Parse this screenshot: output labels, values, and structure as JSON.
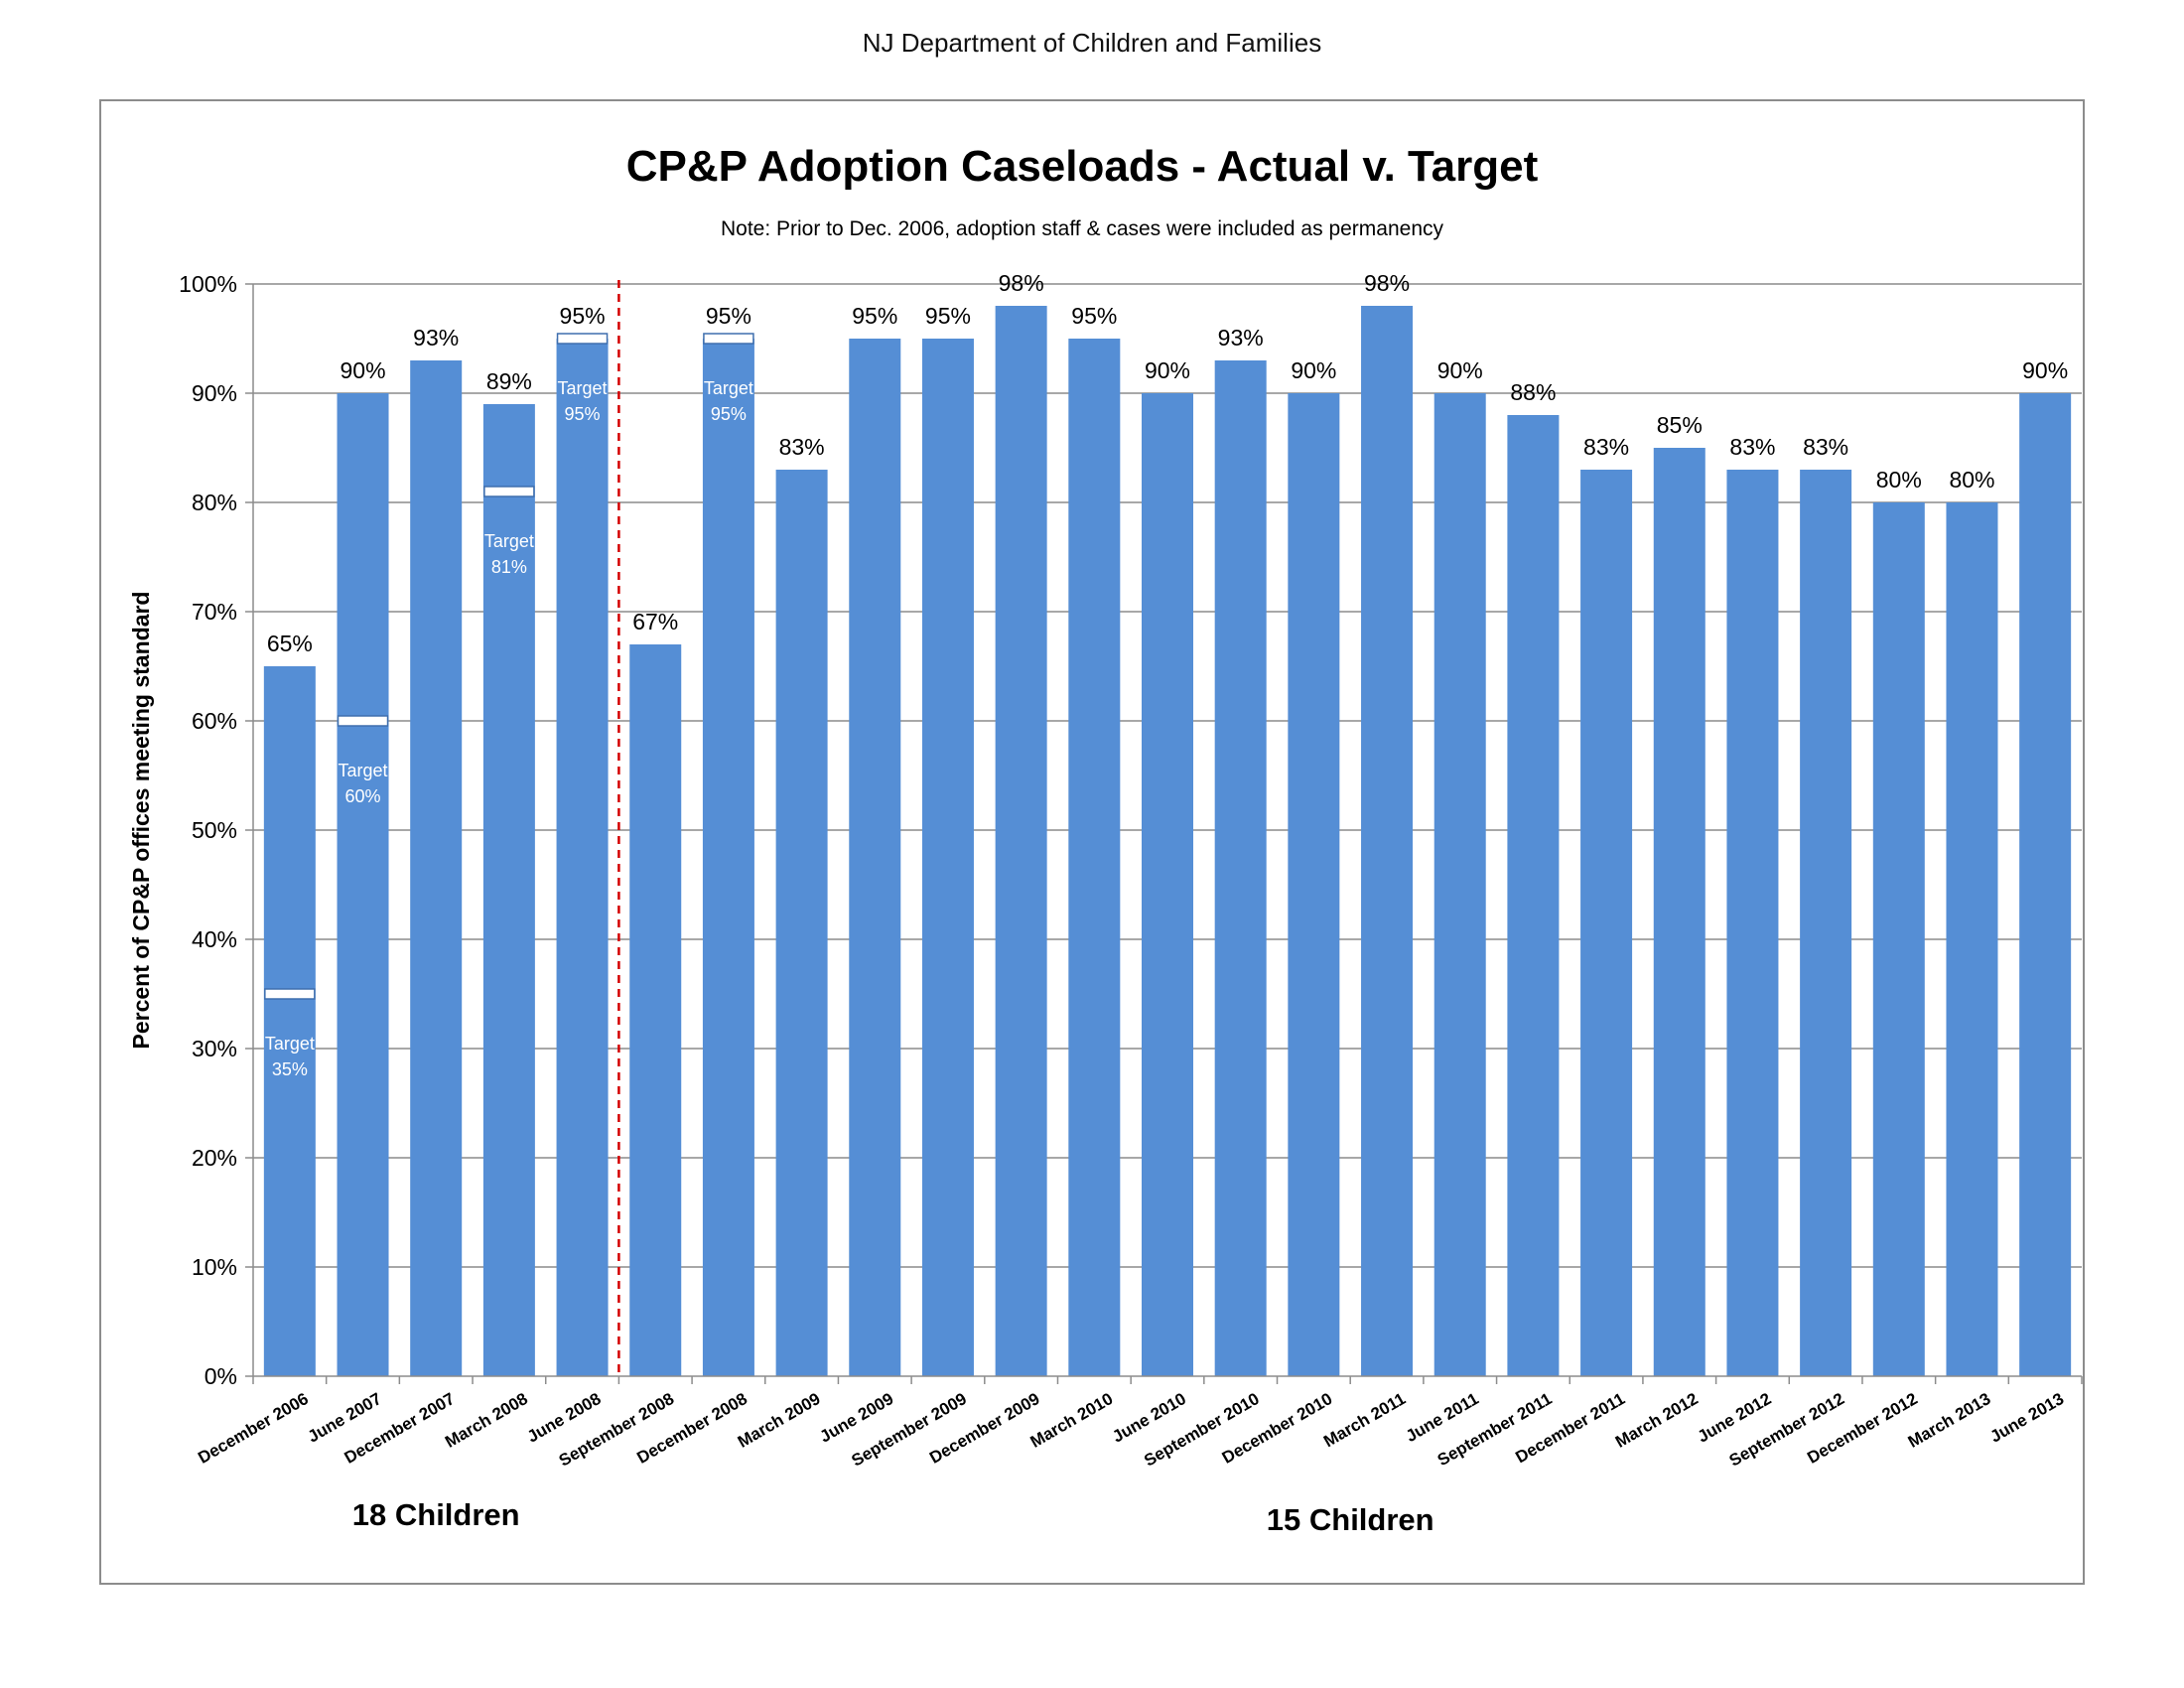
{
  "page": {
    "header": "NJ Department of Children and Families"
  },
  "colors": {
    "bar": "#558ed5",
    "grid": "#8c8c8c",
    "divider": "#d40000",
    "target_marker": "#ffffff"
  },
  "chart_data": {
    "type": "bar",
    "title": "CP&P Adoption Caseloads - Actual v. Target",
    "subtitle": "Note: Prior to Dec. 2006, adoption staff & cases were included as permanency",
    "xlabel": "",
    "ylabel": "Percent of CP&P offices meeting standard",
    "ylim": [
      0,
      100
    ],
    "yticks": [
      "0%",
      "10%",
      "20%",
      "30%",
      "40%",
      "50%",
      "60%",
      "70%",
      "80%",
      "90%",
      "100%"
    ],
    "grid": true,
    "categories": [
      "December 2006",
      "June 2007",
      "December 2007",
      "March 2008",
      "June 2008",
      "September 2008",
      "December 2008",
      "March  2009",
      "June 2009",
      "September 2009",
      "December 2009",
      "March 2010",
      "June 2010",
      "September 2010",
      "December 2010",
      "March 2011",
      "June 2011",
      "September 2011",
      "December 2011",
      "March 2012",
      "June 2012",
      "September 2012",
      "December 2012",
      "March 2013",
      "June 2013"
    ],
    "values": [
      65,
      90,
      93,
      89,
      95,
      67,
      95,
      83,
      95,
      95,
      98,
      95,
      90,
      93,
      90,
      98,
      90,
      88,
      83,
      85,
      83,
      83,
      80,
      80,
      90
    ],
    "value_labels": [
      "65%",
      "90%",
      "93%",
      "89%",
      "95%",
      "67%",
      "95%",
      "83%",
      "95%",
      "95%",
      "98%",
      "95%",
      "90%",
      "93%",
      "90%",
      "98%",
      "90%",
      "88%",
      "83%",
      "85%",
      "83%",
      "83%",
      "80%",
      "80%",
      "90%"
    ],
    "targets": [
      {
        "index": 0,
        "value": 35,
        "label_line1": "Target",
        "label_line2": "35%"
      },
      {
        "index": 1,
        "value": 60,
        "label_line1": "Target",
        "label_line2": "60%"
      },
      {
        "index": 3,
        "value": 81,
        "label_line1": "Target",
        "label_line2": "81%"
      },
      {
        "index": 4,
        "value": 95,
        "label_line1": "Target",
        "label_line2": "95%"
      },
      {
        "index": 6,
        "value": 95,
        "label_line1": "Target",
        "label_line2": "95%"
      }
    ],
    "divider_after_index": 4,
    "groups": [
      {
        "label": "18 Children",
        "from_index": 0,
        "to_index": 4
      },
      {
        "label": "15 Children",
        "from_index": 5,
        "to_index": 24
      }
    ]
  }
}
